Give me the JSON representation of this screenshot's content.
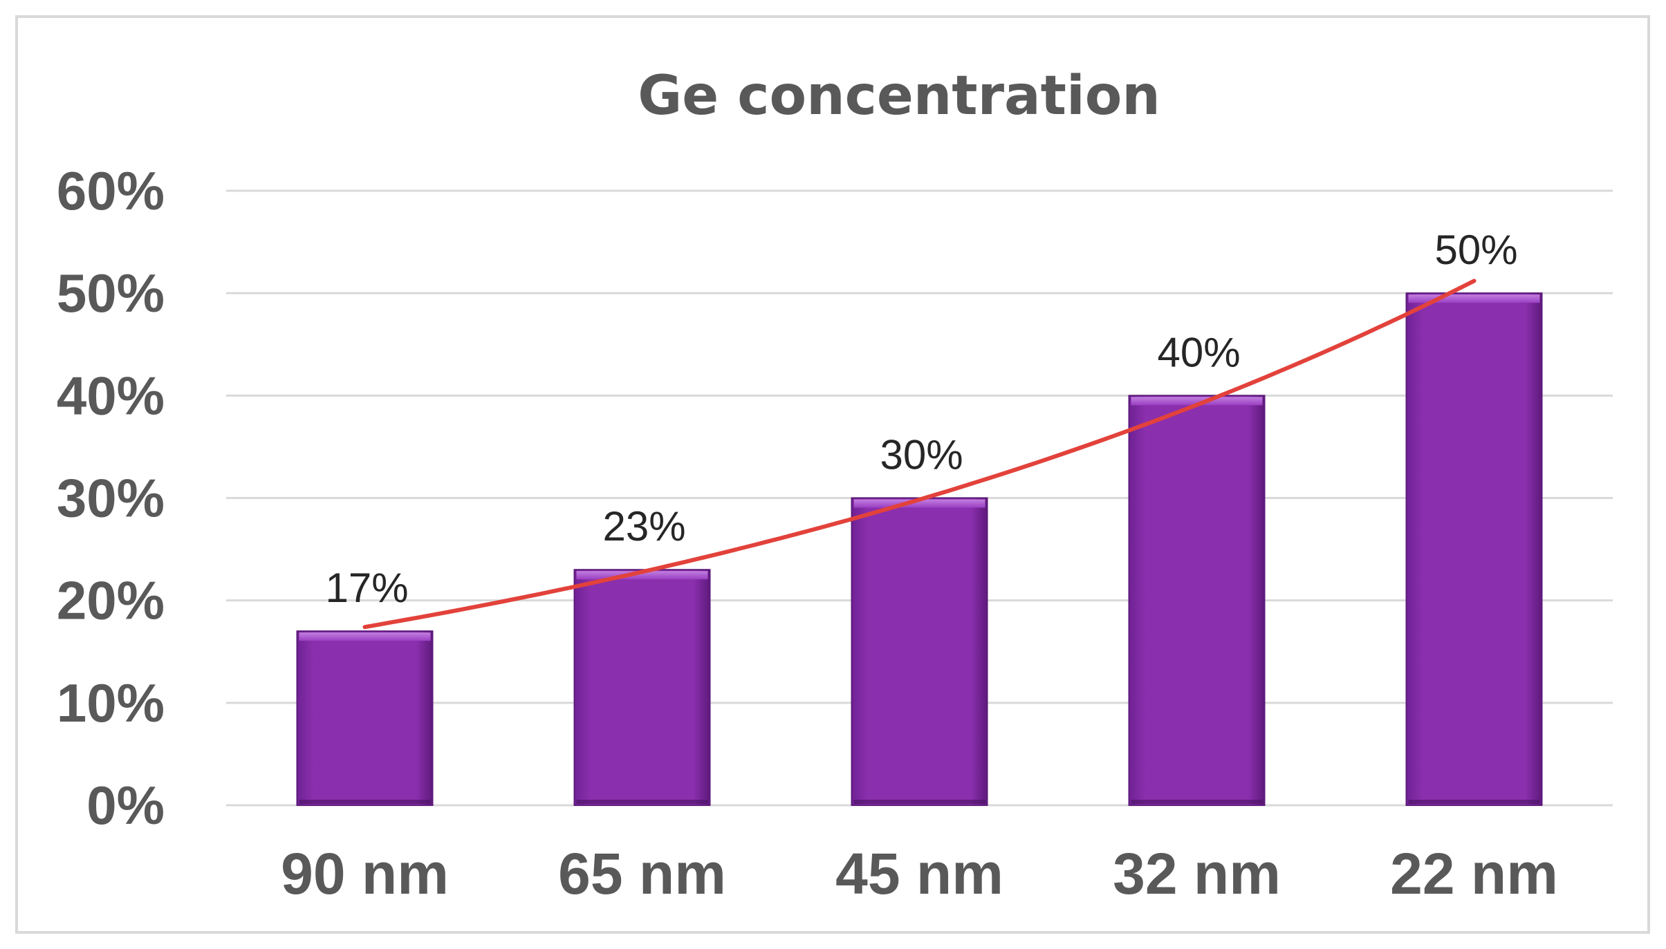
{
  "chart_data": {
    "type": "bar",
    "title": "Ge concentration",
    "xlabel": "",
    "ylabel": "",
    "categories": [
      "90 nm",
      "65 nm",
      "45 nm",
      "32 nm",
      "22 nm"
    ],
    "values": [
      17,
      23,
      30,
      40,
      50
    ],
    "data_labels": [
      "17%",
      "23%",
      "30%",
      "40%",
      "50%"
    ],
    "ylim": [
      0,
      60
    ],
    "yticks": [
      0,
      10,
      20,
      30,
      40,
      50,
      60
    ],
    "ytick_labels": [
      "0%",
      "10%",
      "20%",
      "30%",
      "40%",
      "50%",
      "60%"
    ],
    "grid": true,
    "legend": "none",
    "trendline": {
      "type": "exponential",
      "values": [
        17.4,
        23.3,
        30.5,
        39.6,
        51.2
      ]
    },
    "colors": {
      "bar": "#8a2fad",
      "bar_light": "#a64fd0",
      "bar_dark": "#5e1a7c",
      "trendline": "#e2423b",
      "grid": "#d9d9d9",
      "text": "#595959"
    }
  }
}
